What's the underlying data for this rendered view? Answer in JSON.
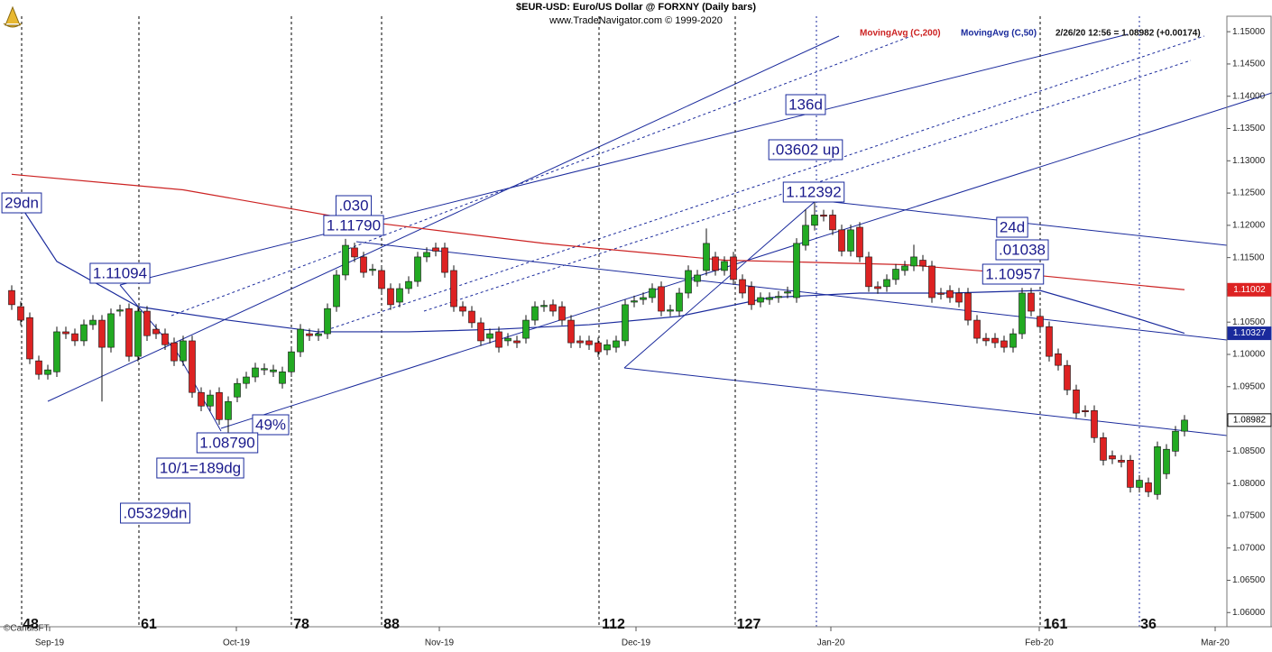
{
  "chart_data": {
    "type": "candlestick",
    "title": "$EUR-USD:  Euro/US Dollar @ FORXNY  (Daily bars)",
    "subtitle": "www.TradeNavigator.com © 1999-2020",
    "status": "2/26/20 12:56 = 1.08982 (+0.00174)",
    "watermark": "©CandisFT",
    "up_color": "#22aa22",
    "down_color": "#dd2222",
    "open": [
      1.1099,
      1.1074,
      1.1057,
      1.099,
      1.0969,
      1.0973,
      1.1035,
      1.1032,
      1.1021,
      1.1046,
      1.1053,
      1.1011,
      1.1067,
      1.1071,
      1.0997,
      1.1067,
      1.1039,
      1.1032,
      1.1018,
      1.099,
      1.1021,
      1.0941,
      1.092,
      1.0941,
      1.0899,
      1.0934,
      1.0955,
      1.0965,
      1.0976,
      1.0973,
      1.0955,
      1.0973,
      1.1004,
      1.1032,
      1.1029,
      1.1032,
      1.1074,
      1.1123,
      1.1165,
      1.1151,
      1.113,
      1.113,
      1.1102,
      1.1081,
      1.1102,
      1.1113,
      1.1151,
      1.1165,
      1.1165,
      1.113,
      1.1074,
      1.1067,
      1.1049,
      1.1025,
      1.1035,
      1.1021,
      1.1021,
      1.1025,
      1.1053,
      1.1074,
      1.1077,
      1.1074,
      1.1053,
      1.1021,
      1.1021,
      1.1018,
      1.1007,
      1.1011,
      1.1021,
      1.1081,
      1.1085,
      1.1088,
      1.1105,
      1.1067,
      1.1067,
      1.1095,
      1.1113,
      1.113,
      1.1151,
      1.113,
      1.1151,
      1.1116,
      1.1105,
      1.1081,
      1.1085,
      1.1088,
      1.1095,
      1.1088,
      1.1169,
      1.12,
      1.1216,
      1.1216,
      1.1193,
      1.116,
      1.1197,
      1.1151,
      1.1105,
      1.1105,
      1.1116,
      1.113,
      1.1137,
      1.1146,
      1.1137,
      1.1095,
      1.1099,
      1.1095,
      1.1095,
      1.1053,
      1.1025,
      1.1025,
      1.1021,
      1.1011,
      1.1032,
      1.1095,
      1.1059,
      1.1043,
      1.1001,
      1.0983,
      1.0945,
      1.0913,
      1.0913,
      1.0871,
      1.0843,
      1.0836,
      1.0836,
      1.0794,
      1.0801,
      1.0783,
      1.0815,
      1.085,
      1.0881
    ],
    "high": [
      1.1107,
      1.1082,
      1.1065,
      1.0998,
      1.0984,
      1.1043,
      1.1043,
      1.104,
      1.1054,
      1.1061,
      1.1061,
      1.1071,
      1.1077,
      1.1079,
      1.1075,
      1.1075,
      1.1047,
      1.104,
      1.1026,
      1.1029,
      1.1029,
      1.0949,
      1.0945,
      1.0949,
      1.0935,
      1.0963,
      1.0973,
      1.0987,
      1.0986,
      1.0984,
      1.0981,
      1.1012,
      1.1047,
      1.104,
      1.104,
      1.1079,
      1.1131,
      1.1179,
      1.1173,
      1.1159,
      1.114,
      1.1138,
      1.111,
      1.111,
      1.1121,
      1.1159,
      1.1166,
      1.1173,
      1.1173,
      1.1138,
      1.1082,
      1.1075,
      1.1057,
      1.104,
      1.1043,
      1.1033,
      1.1029,
      1.1061,
      1.1082,
      1.1084,
      1.1085,
      1.1082,
      1.1061,
      1.1029,
      1.1029,
      1.1026,
      1.1023,
      1.1029,
      1.1085,
      1.1091,
      1.1096,
      1.111,
      1.1113,
      1.1077,
      1.1103,
      1.1138,
      1.1131,
      1.1195,
      1.1159,
      1.1152,
      1.1159,
      1.1124,
      1.1113,
      1.1096,
      1.1096,
      1.1098,
      1.1105,
      1.118,
      1.1225,
      1.1239,
      1.1224,
      1.1224,
      1.1201,
      1.1201,
      1.1205,
      1.1159,
      1.1113,
      1.1124,
      1.114,
      1.1145,
      1.117,
      1.1154,
      1.1145,
      1.1103,
      1.1107,
      1.1103,
      1.1103,
      1.1061,
      1.1033,
      1.1033,
      1.1029,
      1.104,
      1.1103,
      1.1103,
      1.1067,
      1.1051,
      1.1009,
      1.0991,
      1.0953,
      1.0921,
      1.0921,
      1.0879,
      1.0851,
      1.0844,
      1.0844,
      1.0813,
      1.0809,
      1.0865,
      1.0861,
      1.0889,
      1.0906
    ],
    "low": [
      1.1069,
      1.1045,
      1.0985,
      1.0961,
      1.0961,
      1.0965,
      1.1024,
      1.1013,
      1.1013,
      1.1038,
      1.0927,
      1.1003,
      1.1059,
      1.0989,
      1.0989,
      1.1021,
      1.1024,
      1.1007,
      1.0982,
      1.0982,
      1.0933,
      1.0912,
      1.0912,
      1.0891,
      1.0879,
      1.0926,
      1.0947,
      1.0957,
      1.0968,
      1.0965,
      1.0947,
      1.0965,
      1.0996,
      1.1021,
      1.1021,
      1.1024,
      1.1066,
      1.1115,
      1.1143,
      1.1119,
      1.1122,
      1.1094,
      1.1069,
      1.1073,
      1.1094,
      1.1105,
      1.1143,
      1.1152,
      1.1119,
      1.1066,
      1.1059,
      1.1041,
      1.1013,
      1.1017,
      1.1003,
      1.1013,
      1.101,
      1.1017,
      1.1045,
      1.1066,
      1.1059,
      1.1045,
      1.101,
      1.101,
      1.1007,
      1.0996,
      1.0999,
      1.1003,
      1.1013,
      1.1073,
      1.1077,
      1.108,
      1.1059,
      1.1059,
      1.1059,
      1.1087,
      1.1105,
      1.1122,
      1.1122,
      1.1122,
      1.1108,
      1.1087,
      1.1069,
      1.1073,
      1.1077,
      1.108,
      1.1087,
      1.108,
      1.1161,
      1.1192,
      1.1206,
      1.1185,
      1.1152,
      1.1152,
      1.1143,
      1.1097,
      1.1094,
      1.1097,
      1.1108,
      1.1122,
      1.1129,
      1.1129,
      1.108,
      1.1085,
      1.108,
      1.1073,
      1.1045,
      1.1017,
      1.1013,
      1.101,
      1.1003,
      1.1003,
      1.1024,
      1.1059,
      1.1035,
      1.0989,
      1.0975,
      1.0937,
      1.0901,
      1.0903,
      1.0863,
      1.0828,
      1.083,
      1.0825,
      1.0786,
      1.0786,
      1.0779,
      1.0775,
      1.0807,
      1.0842,
      1.0873
    ],
    "close": [
      1.1077,
      1.1053,
      1.0993,
      1.0969,
      1.0976,
      1.1035,
      1.1032,
      1.1021,
      1.1046,
      1.1053,
      1.1011,
      1.1063,
      1.1069,
      1.0997,
      1.1067,
      1.1029,
      1.1032,
      1.1015,
      1.099,
      1.1021,
      1.0941,
      1.092,
      1.0937,
      1.0899,
      1.0927,
      1.0955,
      1.0965,
      1.0979,
      1.0978,
      1.0976,
      1.0973,
      1.1004,
      1.1039,
      1.1029,
      1.1032,
      1.1071,
      1.1123,
      1.1169,
      1.1151,
      1.1127,
      1.1132,
      1.1102,
      1.1077,
      1.1102,
      1.1113,
      1.1151,
      1.1158,
      1.116,
      1.1127,
      1.1074,
      1.1067,
      1.1049,
      1.1021,
      1.1032,
      1.1011,
      1.1025,
      1.1018,
      1.1053,
      1.1074,
      1.1076,
      1.1067,
      1.1053,
      1.1018,
      1.1018,
      1.1015,
      1.1004,
      1.1015,
      1.1021,
      1.1077,
      1.1083,
      1.1088,
      1.1102,
      1.1067,
      1.1069,
      1.1095,
      1.113,
      1.1123,
      1.1172,
      1.113,
      1.1144,
      1.1116,
      1.1095,
      1.1077,
      1.1088,
      1.1088,
      1.109,
      1.1097,
      1.1172,
      1.12,
      1.1216,
      1.1214,
      1.1193,
      1.116,
      1.1193,
      1.1151,
      1.1105,
      1.1102,
      1.1116,
      1.1132,
      1.1137,
      1.1151,
      1.1137,
      1.1088,
      1.1093,
      1.1088,
      1.1081,
      1.1053,
      1.1025,
      1.1021,
      1.1018,
      1.1011,
      1.1032,
      1.1095,
      1.1067,
      1.1043,
      1.0997,
      1.0983,
      1.0945,
      1.0909,
      1.0911,
      1.0871,
      1.0836,
      1.0838,
      1.0833,
      1.0794,
      1.0805,
      1.0787,
      1.0857,
      1.0853,
      1.0881,
      1.08982
    ],
    "moving_averages": [
      {
        "name": "MovingAvg (C,200)",
        "color": "#cc2222",
        "x": [
          0,
          19,
          39,
          59,
          79,
          99,
          114,
          130
        ],
        "values": [
          1.1279,
          1.1255,
          1.1206,
          1.1172,
          1.1146,
          1.1139,
          1.1122,
          1.11002
        ]
      },
      {
        "name": "MovingAvg (C,50)",
        "color": "#1a2a9c",
        "x": [
          0,
          5,
          14,
          24,
          34,
          44,
          54,
          64,
          74,
          84,
          94,
          104,
          114,
          124,
          130
        ],
        "values": [
          1.1251,
          1.1144,
          1.1074,
          1.1053,
          1.1035,
          1.1035,
          1.1039,
          1.1046,
          1.1059,
          1.1088,
          1.1095,
          1.1095,
          1.1099,
          1.1059,
          1.10327
        ]
      }
    ],
    "xlim": [
      -1.3,
      134.7
    ],
    "xticks": [
      {
        "value": 4.2,
        "label": "Sep-19"
      },
      {
        "value": 24.9,
        "label": "Oct-19"
      },
      {
        "value": 47.4,
        "label": "Nov-19"
      },
      {
        "value": 69.2,
        "label": "Dec-19"
      },
      {
        "value": 90.8,
        "label": "Jan-20"
      },
      {
        "value": 113.9,
        "label": "Feb-20"
      },
      {
        "value": 133.4,
        "label": "Mar-20"
      }
    ],
    "ylim": [
      1.0578,
      1.151
    ],
    "yticks": [
      {
        "value": 1.15,
        "label": "1.15000"
      },
      {
        "value": 1.145,
        "label": "1.14500"
      },
      {
        "value": 1.14,
        "label": "1.14000"
      },
      {
        "value": 1.135,
        "label": "1.13500"
      },
      {
        "value": 1.13,
        "label": "1.13000"
      },
      {
        "value": 1.125,
        "label": "1.12500"
      },
      {
        "value": 1.12,
        "label": "1.12000"
      },
      {
        "value": 1.115,
        "label": "1.11500"
      },
      {
        "value": 1.11,
        "label": "1.11000"
      },
      {
        "value": 1.105,
        "label": "1.10500"
      },
      {
        "value": 1.1,
        "label": "1.10000"
      },
      {
        "value": 1.095,
        "label": "1.09500"
      },
      {
        "value": 1.09,
        "label": "1.09000"
      },
      {
        "value": 1.085,
        "label": "1.08500"
      },
      {
        "value": 1.08,
        "label": "1.08000"
      },
      {
        "value": 1.075,
        "label": "1.07500"
      },
      {
        "value": 1.07,
        "label": "1.07000"
      },
      {
        "value": 1.065,
        "label": "1.06500"
      },
      {
        "value": 1.06,
        "label": "1.06000"
      }
    ],
    "annotations": [
      "29dn",
      "1.11094",
      ".030",
      "1.11790",
      "49%",
      "1.08790",
      "10/1=189dg",
      ".05329dn",
      "136d",
      ".03602 up",
      "1.12392",
      "24d",
      ".01038",
      "1.10957"
    ],
    "cycle_labels": [
      "48",
      "61",
      "78",
      "88",
      "112",
      "127",
      "161",
      "36"
    ]
  }
}
